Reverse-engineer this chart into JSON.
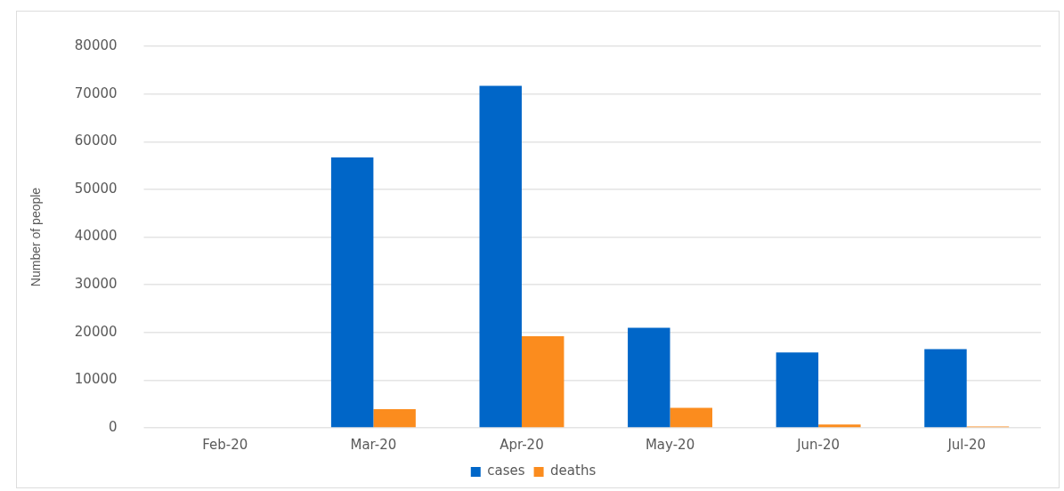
{
  "chart_data": {
    "type": "bar",
    "ylabel": "Number of people",
    "categories": [
      "Feb-20",
      "Mar-20",
      "Apr-20",
      "May-20",
      "Jun-20",
      "Jul-20"
    ],
    "series": [
      {
        "name": "cases",
        "color": "#0066c8",
        "values": [
          0,
          56700,
          71700,
          21000,
          15800,
          16500
        ]
      },
      {
        "name": "deaths",
        "color": "#fb8c1e",
        "values": [
          0,
          3900,
          19200,
          4200,
          700,
          300
        ]
      }
    ],
    "ylim": [
      0,
      80000
    ],
    "yticks": [
      0,
      10000,
      20000,
      30000,
      40000,
      50000,
      60000,
      70000,
      80000
    ],
    "grid": "y",
    "legend": "bottom"
  }
}
